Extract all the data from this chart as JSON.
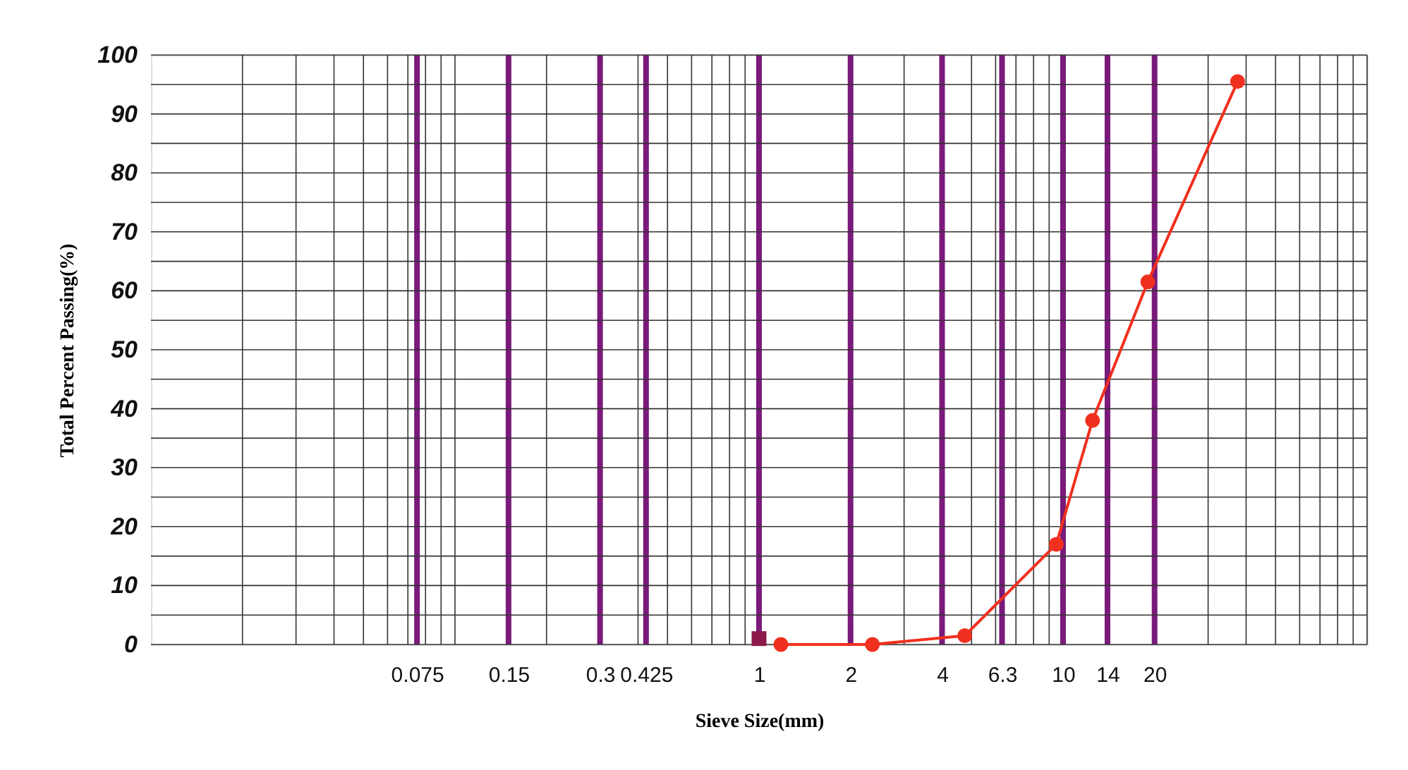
{
  "chart_data": {
    "type": "line",
    "xlabel": "Sieve Size(mm)",
    "ylabel": "Total Percent Passing(%)",
    "log": "x",
    "grid": true,
    "line_style": "solid",
    "xlim": [
      0.01,
      100
    ],
    "xticks": [
      {
        "value": 0.02,
        "label": null
      },
      {
        "value": 0.03,
        "label": null
      },
      {
        "value": 0.04,
        "label": null
      },
      {
        "value": 0.05,
        "label": null
      },
      {
        "value": 0.06,
        "label": null
      },
      {
        "value": 0.07,
        "label": null
      },
      0.075,
      {
        "value": 0.08,
        "label": null
      },
      {
        "value": 0.09,
        "label": null
      },
      {
        "value": 0.1,
        "label": null
      },
      0.15,
      {
        "value": 0.2,
        "label": null
      },
      0.3,
      {
        "value": 0.4,
        "label": null
      },
      0.425,
      {
        "value": 0.5,
        "label": null
      },
      {
        "value": 0.6,
        "label": null
      },
      {
        "value": 0.7,
        "label": null
      },
      {
        "value": 0.8,
        "label": null
      },
      {
        "value": 0.9,
        "label": null
      },
      1,
      2,
      {
        "value": 3,
        "label": null
      },
      4,
      {
        "value": 5,
        "label": null
      },
      {
        "value": 6,
        "label": null
      },
      6.3,
      {
        "value": 7,
        "label": null
      },
      {
        "value": 8,
        "label": null
      },
      {
        "value": 9,
        "label": null
      },
      10,
      14,
      20,
      {
        "value": 30,
        "label": null
      },
      {
        "value": 40,
        "label": null
      },
      {
        "value": 50,
        "label": null
      },
      {
        "value": 60,
        "label": null
      },
      {
        "value": 70,
        "label": null
      },
      {
        "value": 80,
        "label": null
      },
      {
        "value": 90,
        "label": null
      },
      {
        "value": 100,
        "label": null
      }
    ],
    "ylim": [
      0,
      100
    ],
    "yticks": [
      0,
      {
        "value": 5,
        "label": null
      },
      10,
      {
        "value": 15,
        "label": null
      },
      20,
      {
        "value": 25,
        "label": null
      },
      30,
      {
        "value": 35,
        "label": null
      },
      40,
      {
        "value": 45,
        "label": null
      },
      50,
      {
        "value": 55,
        "label": null
      },
      60,
      {
        "value": 65,
        "label": null
      },
      70,
      {
        "value": 75,
        "label": null
      },
      80,
      {
        "value": 85,
        "label": null
      },
      90,
      {
        "value": 95,
        "label": null
      },
      100
    ],
    "series": [
      {
        "color": "#f0301e",
        "marker": "circle",
        "x": [
          1.18,
          2.36,
          4.75,
          9.5,
          12.5,
          19,
          37.5
        ],
        "values": [
          0,
          0,
          1.5,
          17,
          38,
          61.5,
          95.5
        ]
      },
      {
        "type": "scatter",
        "color": "#8b1a4a",
        "marker": "square",
        "x": [
          1
        ],
        "values": [
          1
        ]
      }
    ]
  }
}
